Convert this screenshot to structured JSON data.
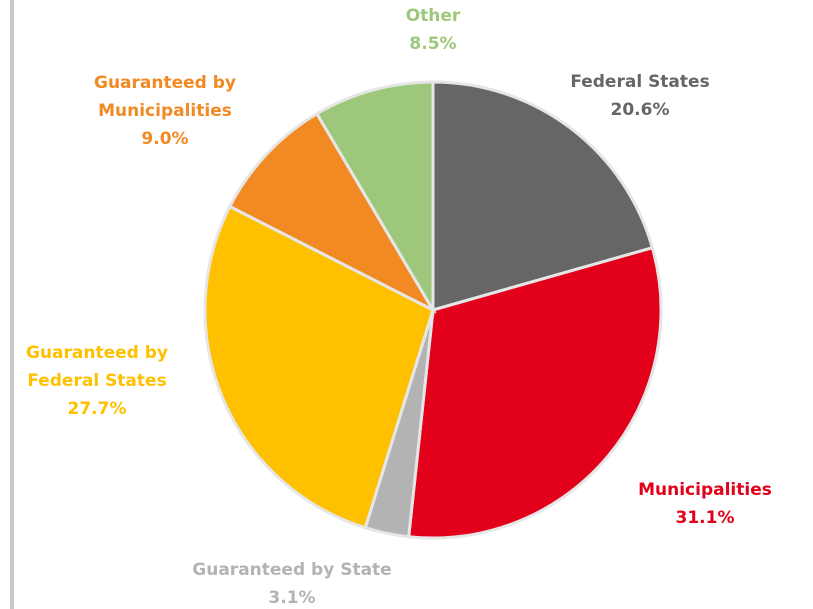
{
  "chart_data": {
    "type": "pie",
    "categories": [
      "Federal States",
      "Municipalities",
      "Guaranteed by State",
      "Guaranteed by Federal States",
      "Guaranteed by Municipalities",
      "Other"
    ],
    "values": [
      20.6,
      31.1,
      3.1,
      27.7,
      9.0,
      8.5
    ],
    "value_labels": [
      "20.6%",
      "31.1%",
      "3.1%",
      "27.7%",
      "9.0%",
      "8.5%"
    ],
    "colors": [
      "#666666",
      "#e2001a",
      "#b3b3b3",
      "#ffc000",
      "#f28a24",
      "#9dc77a"
    ]
  }
}
